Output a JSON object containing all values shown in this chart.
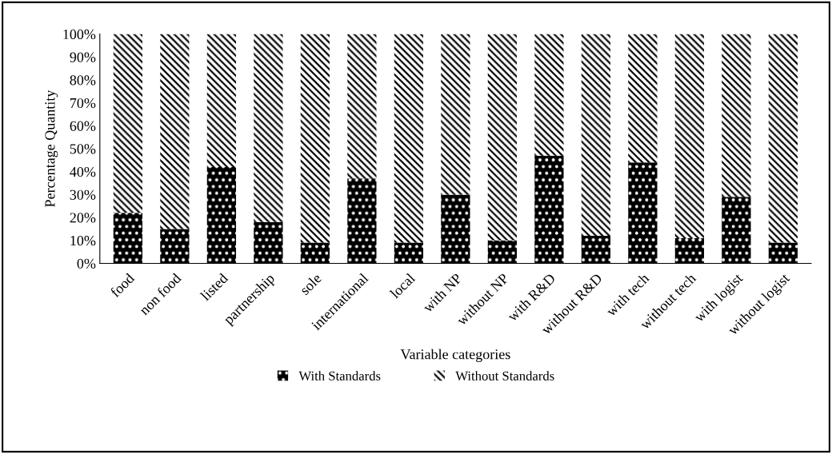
{
  "chart_data": {
    "type": "bar",
    "stacked": true,
    "xlabel": "Variable categories",
    "ylabel": "Percentage Quantity",
    "categories": [
      "food",
      "non food",
      "listed",
      "partnership",
      "sole",
      "international",
      "local",
      "with NP",
      "without NP",
      "with R&D",
      "without R&D",
      "with tech",
      "without tech",
      "with logist",
      "without logist"
    ],
    "series": [
      {
        "name": "With Standards",
        "color": "#000000",
        "values": [
          22,
          15,
          42,
          18,
          9,
          37,
          9,
          30,
          10,
          47,
          12,
          44,
          11,
          29,
          9
        ]
      },
      {
        "name": "Without Standards",
        "color": "#ffffff",
        "values": [
          78,
          85,
          58,
          82,
          91,
          63,
          91,
          70,
          90,
          53,
          88,
          56,
          89,
          71,
          91
        ]
      }
    ],
    "ylim": [
      0,
      100
    ],
    "yticks": [
      {
        "value": 0,
        "label": "0%"
      },
      {
        "value": 10,
        "label": "10%"
      },
      {
        "value": 20,
        "label": "20%"
      },
      {
        "value": 30,
        "label": "30%"
      },
      {
        "value": 40,
        "label": "40%"
      },
      {
        "value": 50,
        "label": "50%"
      },
      {
        "value": 60,
        "label": "60%"
      },
      {
        "value": 70,
        "label": "70%"
      },
      {
        "value": 80,
        "label": "80%"
      },
      {
        "value": 90,
        "label": "90%"
      },
      {
        "value": 100,
        "label": "100%"
      }
    ],
    "grid": false,
    "legend": "bottom"
  }
}
